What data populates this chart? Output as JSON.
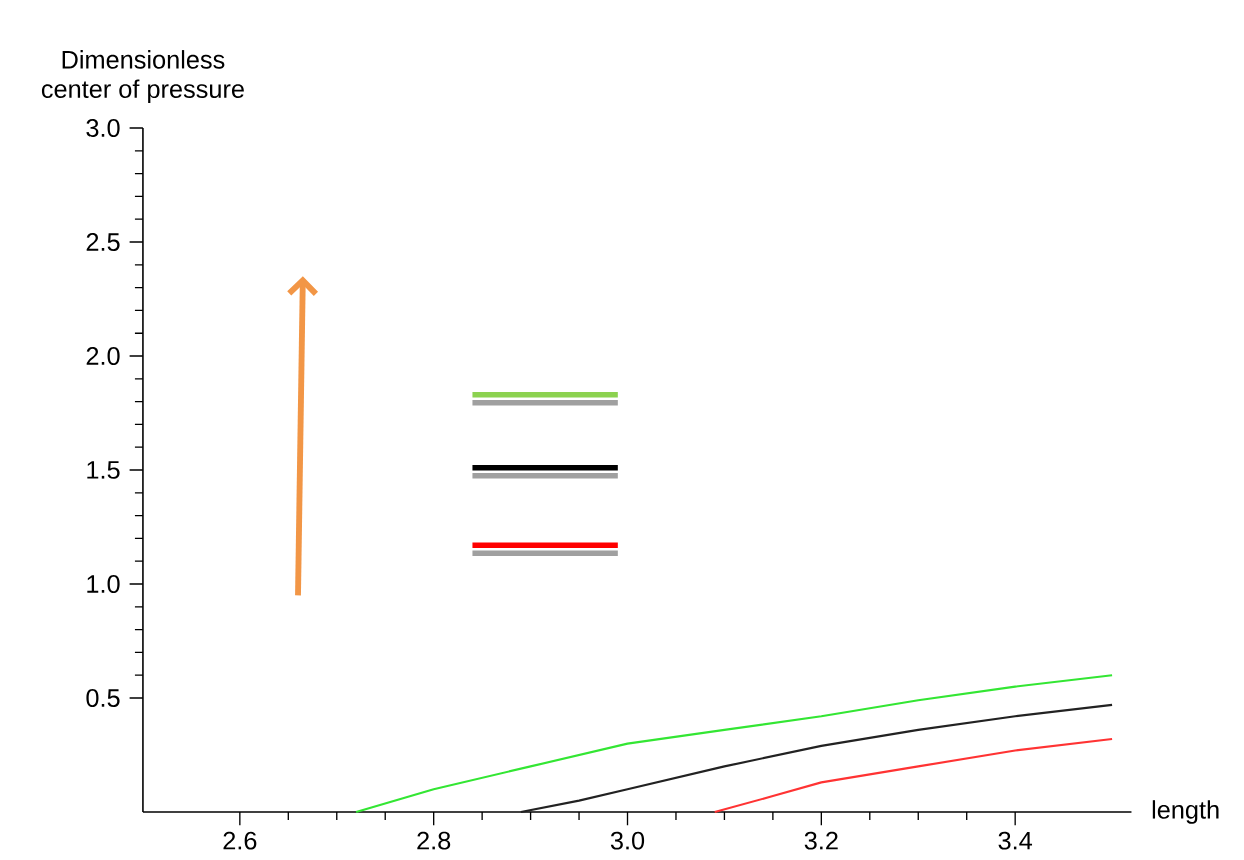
{
  "chart_data": {
    "type": "line",
    "xlabel": "length",
    "ylabel": "Dimensionless\ncenter of pressure",
    "xlim": [
      2.5,
      3.52
    ],
    "ylim": [
      0,
      3.0
    ],
    "xticks": [
      2.6,
      2.8,
      {
        "value": 3.0,
        "label": "3.0"
      },
      3.2,
      3.4
    ],
    "yticks": [
      0.5,
      {
        "value": 1.0,
        "label": "1.0"
      },
      1.5,
      {
        "value": 2.0,
        "label": "2.0"
      },
      2.5,
      {
        "value": 3.0,
        "label": "3.0"
      }
    ],
    "grid": false,
    "series": [
      {
        "color": "#33e633",
        "x": [
          2.72,
          2.8,
          2.9,
          3.0,
          3.1,
          3.2,
          3.3,
          3.4,
          3.5
        ],
        "values": [
          0,
          0.1,
          0.2,
          0.3,
          0.36,
          0.42,
          0.49,
          0.55,
          0.6
        ]
      },
      {
        "color": "#222222",
        "x": [
          2.89,
          2.95,
          3.0,
          3.1,
          3.2,
          3.3,
          3.4,
          3.5
        ],
        "values": [
          0,
          0.05,
          0.1,
          0.2,
          0.29,
          0.36,
          0.42,
          0.47
        ]
      },
      {
        "color": "#ff3333",
        "x": [
          3.09,
          3.15,
          3.2,
          3.3,
          3.4,
          3.5
        ],
        "values": [
          0,
          0.07,
          0.13,
          0.2,
          0.27,
          0.32
        ]
      }
    ]
  }
}
